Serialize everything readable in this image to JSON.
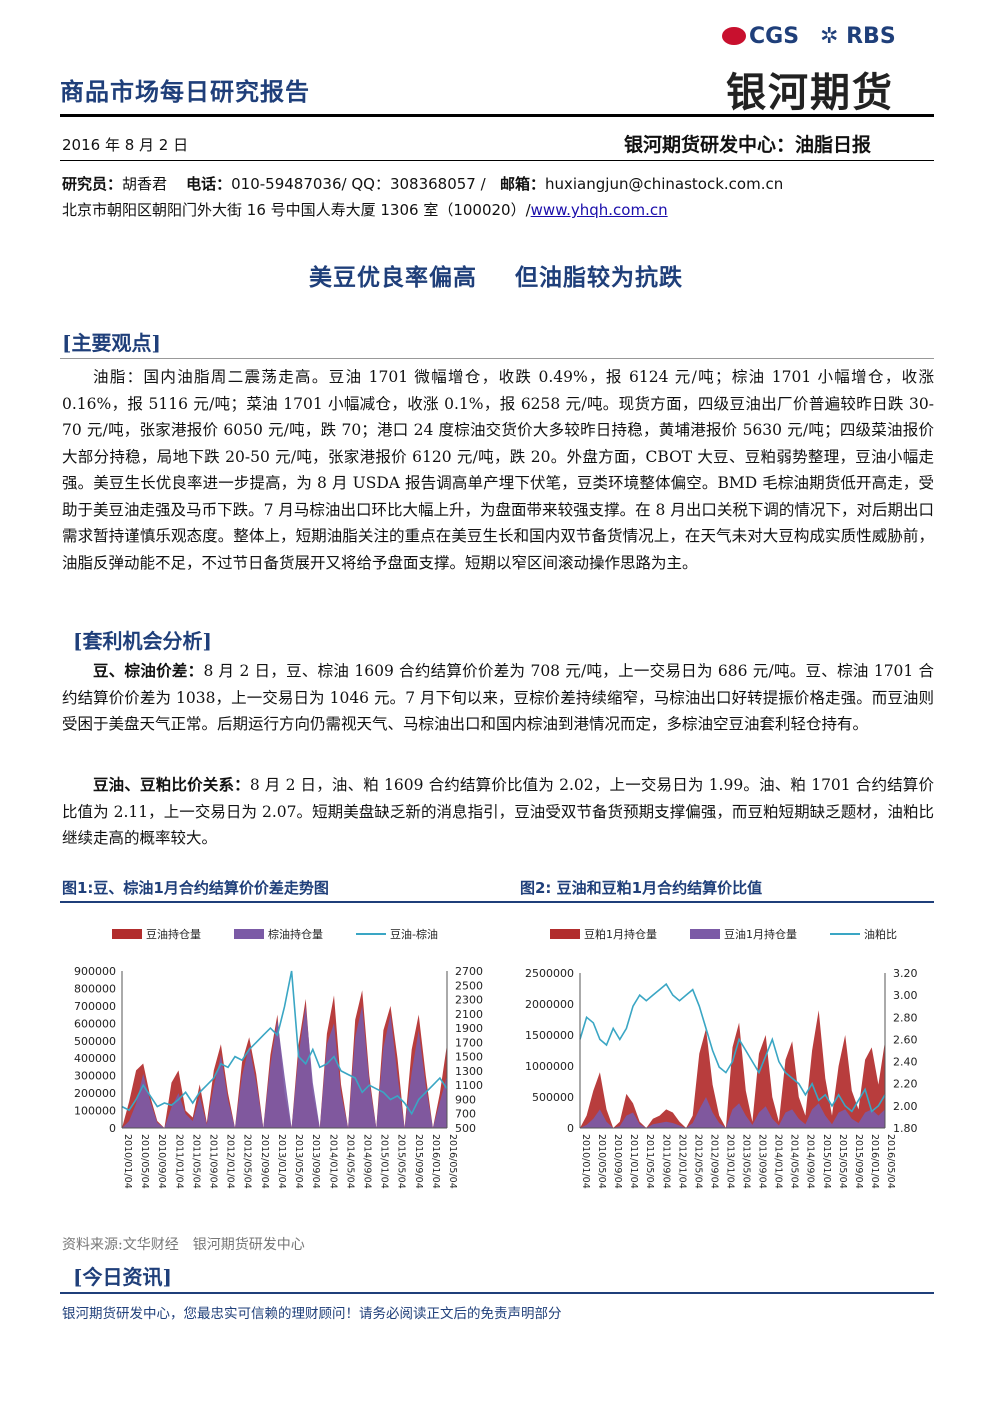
{
  "header": {
    "report_title": "商品市场每日研究报告",
    "logo_cgs": "CGS",
    "logo_rbs": "RBS",
    "logo_cn": "银河期货",
    "date": "2016 年 8 月 2 日",
    "center_name": "银河期货研发中心：油脂日报"
  },
  "contact": {
    "analyst_label": "研究员：",
    "analyst": "胡香君",
    "phone_label": "电话：",
    "phone": "010-59487036/ QQ：308368057 /",
    "email_label": "邮箱：",
    "email": "huxiangjun@chinastock.com.cn",
    "address": "北京市朝阳区朝阳门外大街 16 号中国人寿大厦 1306 室（100020）/",
    "website": "www.yhqh.com.cn"
  },
  "headline": {
    "part1": "美豆优良率偏高",
    "part2": "但油脂较为抗跌"
  },
  "section1": {
    "title": "[主要观点]",
    "paragraph": "油脂：国内油脂周二震荡走高。豆油 1701 微幅增仓，收跌 0.49%，报 6124 元/吨；棕油 1701 小幅增仓，收涨 0.16%，报 5116 元/吨；菜油 1701 小幅减仓，收涨 0.1%，报 6258 元/吨。现货方面，四级豆油出厂价普遍较昨日跌 30-70 元/吨，张家港报价 6050 元/吨，跌 70；港口 24 度棕油交货价大多较昨日持稳，黄埔港报价 5630 元/吨；四级菜油报价大部分持稳，局地下跌 20-50 元/吨，张家港报价 6120 元/吨，跌 20。外盘方面，CBOT 大豆、豆粕弱势整理，豆油小幅走强。美豆生长优良率进一步提高，为 8 月 USDA 报告调高单产埋下伏笔，豆类环境整体偏空。BMD 毛棕油期货低开高走，受助于美豆油走强及马币下跌。7 月马棕油出口环比大幅上升，为盘面带来较强支撑。在 8 月出口关税下调的情况下，对后期出口需求暂持谨慎乐观态度。整体上，短期油脂关注的重点在美豆生长和国内双节备货情况上，在天气未对大豆构成实质性威胁前，油脂反弹动能不足，不过节日备货展开又将给予盘面支撑。短期以窄区间滚动操作思路为主。"
  },
  "section2": {
    "title": "[套利机会分析]",
    "para1_lead": "豆、棕油价差：",
    "para1_body": "8 月 2 日，豆、棕油 1609 合约结算价价差为 708 元/吨，上一交易日为 686 元/吨。豆、棕油 1701 合约结算价价差为 1038，上一交易日为 1046 元。7 月下旬以来，豆棕价差持续缩窄，马棕油出口好转提振价格走强。而豆油则受困于美盘天气正常。后期运行方向仍需视天气、马棕油出口和国内棕油到港情况而定，多棕油空豆油套利轻仓持有。",
    "para2_lead": "豆油、豆粕比价关系：",
    "para2_body": "8 月 2 日，油、粕 1609 合约结算价比值为 2.02，上一交易日为 1.99。油、粕 1701 合约结算价比值为 2.11，上一交易日为 2.07。短期美盘缺乏新的消息指引，豆油受双节备货预期支撑偏强，而豆粕短期缺乏题材，油粕比继续走高的概率较大。"
  },
  "figures": {
    "fig1_title": "图1:豆、棕油1月合约结算价价差走势图",
    "fig2_title": "图2: 豆油和豆粕1月合约结算价比值"
  },
  "chart_data": [
    {
      "type": "area",
      "x_ticks": [
        "2010/01/04",
        "2010/05/04",
        "2010/09/04",
        "2011/01/04",
        "2011/05/04",
        "2011/09/04",
        "2012/01/04",
        "2012/05/04",
        "2012/09/04",
        "2013/01/04",
        "2013/05/04",
        "2013/09/04",
        "2014/01/04",
        "2014/05/04",
        "2014/09/04",
        "2015/01/04",
        "2015/05/04",
        "2015/09/04",
        "2016/01/04",
        "2016/05/04"
      ],
      "y_left_ticks": [
        "0",
        "100000",
        "200000",
        "300000",
        "400000",
        "500000",
        "600000",
        "700000",
        "800000",
        "900000"
      ],
      "y_right_ticks": [
        "500",
        "700",
        "900",
        "1100",
        "1300",
        "1500",
        "1700",
        "1900",
        "2100",
        "2300",
        "2500",
        "2700"
      ],
      "ylim_left": [
        0,
        900000
      ],
      "ylim_right": [
        500,
        2700
      ],
      "grid": false,
      "legend_position": "top",
      "series": [
        {
          "name": "豆油持仓量",
          "kind": "area",
          "axis": "left",
          "color": "#b22d2d",
          "values": [
            0,
            150000,
            330000,
            370000,
            180000,
            40000,
            0,
            260000,
            330000,
            100000,
            60000,
            250000,
            30000,
            330000,
            480000,
            200000,
            0,
            380000,
            520000,
            310000,
            0,
            420000,
            650000,
            200000,
            0,
            480000,
            740000,
            200000,
            0,
            540000,
            760000,
            250000,
            0,
            620000,
            790000,
            300000,
            0,
            560000,
            700000,
            400000,
            0,
            450000,
            650000,
            300000,
            0,
            200000,
            480000
          ]
        },
        {
          "name": "棕油持仓量",
          "kind": "area",
          "axis": "left",
          "color": "#7b5aa6",
          "values": [
            0,
            40000,
            140000,
            310000,
            150000,
            30000,
            0,
            120000,
            200000,
            80000,
            40000,
            180000,
            20000,
            240000,
            420000,
            160000,
            0,
            300000,
            470000,
            260000,
            0,
            360000,
            620000,
            300000,
            0,
            420000,
            700000,
            260000,
            0,
            480000,
            600000,
            200000,
            0,
            520000,
            700000,
            260000,
            0,
            460000,
            650000,
            300000,
            0,
            320000,
            560000,
            240000,
            0,
            150000,
            300000
          ]
        },
        {
          "name": "豆油-棕油",
          "kind": "line",
          "axis": "right",
          "color": "#3aa6c4",
          "values": [
            800,
            750,
            900,
            1100,
            950,
            800,
            850,
            820,
            900,
            1000,
            850,
            1000,
            1100,
            1200,
            1400,
            1350,
            1500,
            1450,
            1600,
            1700,
            1800,
            1900,
            1800,
            2200,
            2700,
            1500,
            1400,
            1600,
            1350,
            1400,
            1500,
            1300,
            1250,
            1200,
            1000,
            1100,
            1050,
            1000,
            900,
            950,
            850,
            700,
            900,
            1000,
            1100,
            1200,
            1050
          ]
        }
      ]
    },
    {
      "type": "area",
      "x_ticks": [
        "2010/01/04",
        "2010/05/04",
        "2010/09/04",
        "2011/01/04",
        "2011/05/04",
        "2011/09/04",
        "2012/01/04",
        "2012/05/04",
        "2012/09/04",
        "2013/01/04",
        "2013/05/04",
        "2013/09/04",
        "2014/01/04",
        "2014/05/04",
        "2014/09/04",
        "2015/01/04",
        "2015/05/04",
        "2015/09/04",
        "2016/01/04",
        "2016/05/04"
      ],
      "y_left_ticks": [
        "0",
        "500000",
        "1000000",
        "1500000",
        "2000000",
        "2500000"
      ],
      "y_right_ticks": [
        "1.80",
        "2.00",
        "2.20",
        "2.40",
        "2.60",
        "2.80",
        "3.00",
        "3.20"
      ],
      "ylim_left": [
        0,
        2500000
      ],
      "ylim_right": [
        1.8,
        3.2
      ],
      "grid": false,
      "legend_position": "top",
      "series": [
        {
          "name": "豆粕1月持仓量",
          "kind": "area",
          "axis": "left",
          "color": "#b22d2d",
          "values": [
            0,
            200000,
            600000,
            900000,
            300000,
            0,
            100000,
            550000,
            400000,
            100000,
            0,
            150000,
            200000,
            300000,
            250000,
            100000,
            0,
            200000,
            1200000,
            1600000,
            700000,
            200000,
            0,
            1300000,
            1700000,
            600000,
            100000,
            1200000,
            1500000,
            500000,
            100000,
            1100000,
            1400000,
            500000,
            200000,
            1250000,
            1900000,
            800000,
            200000,
            1000000,
            1500000,
            600000,
            300000,
            1100000,
            1300000,
            700000,
            1400000
          ]
        },
        {
          "name": "豆油1月持仓量",
          "kind": "area",
          "axis": "left",
          "color": "#7b5aa6",
          "values": [
            0,
            50000,
            150000,
            300000,
            100000,
            0,
            30000,
            200000,
            250000,
            60000,
            0,
            60000,
            80000,
            100000,
            80000,
            40000,
            0,
            80000,
            300000,
            500000,
            250000,
            80000,
            0,
            300000,
            400000,
            200000,
            50000,
            250000,
            350000,
            150000,
            40000,
            250000,
            300000,
            150000,
            60000,
            300000,
            400000,
            200000,
            60000,
            250000,
            300000,
            150000,
            80000,
            250000,
            300000,
            200000,
            300000
          ]
        },
        {
          "name": "油粕比",
          "kind": "line",
          "axis": "right",
          "color": "#3aa6c4",
          "values": [
            2.6,
            2.8,
            2.75,
            2.6,
            2.55,
            2.7,
            2.6,
            2.7,
            2.9,
            3.0,
            2.95,
            3.0,
            3.05,
            3.1,
            3.0,
            2.95,
            3.0,
            3.05,
            2.9,
            2.7,
            2.5,
            2.35,
            2.3,
            2.4,
            2.6,
            2.5,
            2.4,
            2.3,
            2.45,
            2.6,
            2.4,
            2.3,
            2.25,
            2.2,
            2.1,
            2.2,
            2.05,
            2.1,
            2.0,
            2.1,
            2.0,
            1.95,
            2.05,
            2.15,
            1.95,
            2.0,
            2.1
          ]
        }
      ]
    }
  ],
  "source": {
    "label": "资料来源:文华财经",
    "org": "银河期货研发中心"
  },
  "section3": {
    "title": "[今日资讯]"
  },
  "footer": {
    "text": "银河期货研发中心，您最忠实可信赖的理财顾问！请务必阅读正文后的免责声明部分"
  }
}
